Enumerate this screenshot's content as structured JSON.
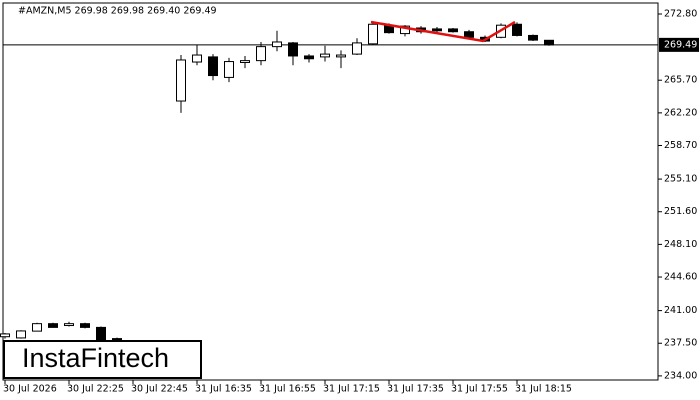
{
  "chart_data": {
    "type": "candlestick",
    "title": "#AMZN,M5  269.98 269.98 269.40 269.49",
    "categories": [
      "30 Jul 2026",
      null,
      null,
      null,
      "30 Jul 22:25",
      null,
      null,
      null,
      "30 Jul 22:45",
      null,
      null,
      null,
      "31 Jul 16:35",
      null,
      null,
      null,
      "31 Jul 16:55",
      null,
      null,
      null,
      "31 Jul 17:15",
      null,
      null,
      null,
      "31 Jul 17:35",
      null,
      null,
      null,
      "31 Jul 17:55",
      null,
      null,
      null,
      "31 Jul 18:15",
      null,
      null
    ],
    "open": [
      238.2,
      238.07,
      238.8,
      239.6,
      239.4,
      239.6,
      239.2,
      238.0,
      null,
      null,
      null,
      263.47,
      267.65,
      268.2,
      266.0,
      267.6,
      267.8,
      269.3,
      269.7,
      268.3,
      268.2,
      268.2,
      268.5,
      269.6,
      271.6,
      270.7,
      271.3,
      271.2,
      271.2,
      270.9,
      270.3,
      270.3,
      271.7,
      270.5,
      269.98
    ],
    "high": [
      238.6,
      238.9,
      239.7,
      239.7,
      239.8,
      239.7,
      239.3,
      238.1,
      null,
      null,
      null,
      268.4,
      269.5,
      268.5,
      268.1,
      268.3,
      269.8,
      271.0,
      269.8,
      268.5,
      269.4,
      268.9,
      270.2,
      271.9,
      271.8,
      271.6,
      271.5,
      271.4,
      271.3,
      271.1,
      270.5,
      271.8,
      271.9,
      270.6,
      269.98
    ],
    "low": [
      238.0,
      238.0,
      238.8,
      239.2,
      239.3,
      239.1,
      237.8,
      237.4,
      null,
      null,
      null,
      262.2,
      267.3,
      265.7,
      265.5,
      267.0,
      267.3,
      268.8,
      267.3,
      267.6,
      267.7,
      267.0,
      268.4,
      269.5,
      270.7,
      270.4,
      270.7,
      270.8,
      270.8,
      270.2,
      269.8,
      270.2,
      270.4,
      269.9,
      269.4
    ],
    "close": [
      238.5,
      238.82,
      239.6,
      239.2,
      239.6,
      239.2,
      237.9,
      237.9,
      null,
      null,
      null,
      267.87,
      268.4,
      266.2,
      267.7,
      267.8,
      269.3,
      269.8,
      268.3,
      268.0,
      268.5,
      268.4,
      269.7,
      271.7,
      270.8,
      271.5,
      270.9,
      271.0,
      270.9,
      270.3,
      269.9,
      271.6,
      270.5,
      270.0,
      269.49
    ],
    "up_color": "#ffffff",
    "down_color": "#000000",
    "outline_color": "#000000",
    "ylim": [
      233.56,
      274.3
    ],
    "yticks": [
      {
        "value": 234.0,
        "label": "234.00"
      },
      {
        "value": 237.5,
        "label": "237.50"
      },
      {
        "value": 241.0,
        "label": "241.00"
      },
      {
        "value": 244.6,
        "label": "244.60"
      },
      {
        "value": 248.1,
        "label": "248.10"
      },
      {
        "value": 251.6,
        "label": "251.60"
      },
      {
        "value": 255.1,
        "label": "255.10"
      },
      {
        "value": 258.7,
        "label": "258.70"
      },
      {
        "value": 262.2,
        "label": "262.20"
      },
      {
        "value": 265.7,
        "label": "265.70"
      },
      {
        "value": 272.8,
        "label": "272.80"
      }
    ],
    "price_line": {
      "value": 269.49,
      "label": "269.49"
    },
    "grid": false
  },
  "watermark": "InstaFintech"
}
